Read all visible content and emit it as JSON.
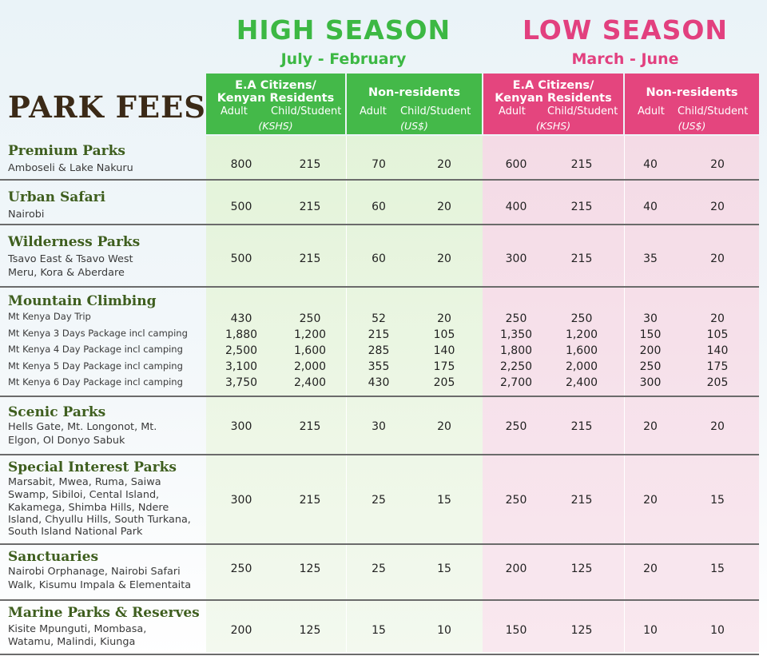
{
  "high_season": {
    "title": "HIGH SEASON",
    "period": "July - February"
  },
  "low_season": {
    "title": "LOW SEASON",
    "period": "March - June"
  },
  "page_title": "PARK FEES",
  "headers": {
    "citizens": "E.A Citizens/",
    "residents": "Kenyan Residents",
    "non_residents": "Non-residents",
    "adult": "Adult",
    "child": "Child/Student",
    "kshs": "(KSHS)",
    "usd": "(US$)"
  },
  "sections": [
    {
      "title": "Premium Parks",
      "desc": [
        "Amboseli & Lake Nakuru"
      ],
      "values": [
        "800",
        "215",
        "70",
        "20",
        "600",
        "215",
        "40",
        "20"
      ]
    },
    {
      "title": "Urban Safari",
      "desc": [
        "Nairobi"
      ],
      "values": [
        "500",
        "215",
        "60",
        "20",
        "400",
        "215",
        "40",
        "20"
      ]
    },
    {
      "title": "Wilderness Parks",
      "desc": [
        "Tsavo East & Tsavo West",
        "Meru, Kora & Aberdare"
      ],
      "values": [
        "500",
        "215",
        "60",
        "20",
        "300",
        "215",
        "35",
        "20"
      ]
    },
    {
      "title": "Mountain Climbing",
      "rows": [
        {
          "label": "Mt Kenya Day Trip",
          "values": [
            "430",
            "250",
            "52",
            "20",
            "250",
            "250",
            "30",
            "20"
          ]
        },
        {
          "label": "Mt Kenya 3 Days Package incl camping",
          "values": [
            "1,880",
            "1,200",
            "215",
            "105",
            "1,350",
            "1,200",
            "150",
            "105"
          ]
        },
        {
          "label": "Mt Kenya 4 Day Package incl camping",
          "values": [
            "2,500",
            "1,600",
            "285",
            "140",
            "1,800",
            "1,600",
            "200",
            "140"
          ]
        },
        {
          "label": "Mt Kenya 5 Day Package incl camping",
          "values": [
            "3,100",
            "2,000",
            "355",
            "175",
            "2,250",
            "2,000",
            "250",
            "175"
          ]
        },
        {
          "label": "Mt Kenya 6 Day Package incl camping",
          "values": [
            "3,750",
            "2,400",
            "430",
            "205",
            "2,700",
            "2,400",
            "300",
            "205"
          ]
        }
      ]
    },
    {
      "title": "Scenic Parks",
      "desc": [
        "Hells Gate, Mt. Longonot, Mt.",
        "Elgon, Ol Donyo Sabuk"
      ],
      "values": [
        "300",
        "215",
        "30",
        "20",
        "250",
        "215",
        "20",
        "20"
      ]
    },
    {
      "title": "Special Interest Parks",
      "desc": [
        "Marsabit, Mwea, Ruma, Saiwa",
        "Swamp, Sibiloi, Cental Island,",
        "Kakamega, Shimba Hills, Ndere",
        "Island, Chyullu Hills, South Turkana,",
        "South Island National Park"
      ],
      "values": [
        "300",
        "215",
        "25",
        "15",
        "250",
        "215",
        "20",
        "15"
      ]
    },
    {
      "title": "Sanctuaries",
      "desc": [
        "Nairobi Orphanage, Nairobi Safari",
        "Walk, Kisumu Impala & Elementaita"
      ],
      "values": [
        "250",
        "125",
        "25",
        "15",
        "200",
        "125",
        "20",
        "15"
      ]
    },
    {
      "title": "Marine Parks & Reserves",
      "desc": [
        "Kisite Mpunguti, Mombasa,",
        "Watamu, Malindi, Kiunga"
      ],
      "values": [
        "200",
        "125",
        "15",
        "10",
        "150",
        "125",
        "10",
        "10"
      ]
    }
  ],
  "colors": {
    "green": "#44b949",
    "pink": "#e4457e",
    "section_title": "#3e5e1e"
  }
}
